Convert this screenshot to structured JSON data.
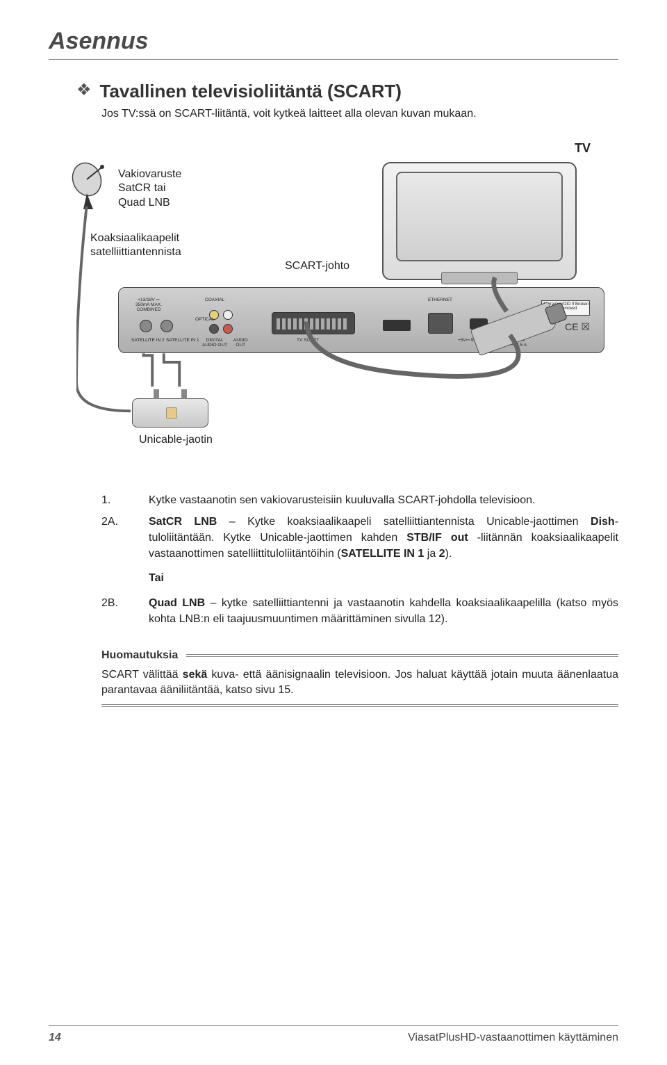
{
  "chapter_title": "Asennus",
  "section_title": "Tavallinen televisioliitäntä (SCART)",
  "intro": "Jos TV:ssä on SCART-liitäntä, voit kytkeä laitteet alla olevan kuvan mukaan.",
  "diagram": {
    "tv_label": "TV",
    "vakio_lines": [
      "Vakiovaruste",
      "SatCR tai",
      "Quad LNB"
    ],
    "coax_lines": [
      "Koaksiaalikaapelit",
      "satelliittiantennista"
    ],
    "scart_cable": "SCART-johto",
    "unicable": "Unicable-jaotin",
    "stb_ports": {
      "spec_line1": "+13/18V ⎓",
      "spec_line2": "350mA MAX.",
      "spec_line3": "COMBINED",
      "coaxial": "COAXIAL",
      "optical": "OPTICAL",
      "sat2": "SATELLITE IN 2",
      "sat1": "SATELLITE IN 1",
      "digital_audio": "DIGITAL\nAUDIO OUT",
      "audio_out": "AUDIO\nOUT",
      "tv_scart": "TV SCART",
      "ethernet": "ETHERNET",
      "usb": "+5V⎓ 500mA MAX.",
      "power": "POWER IN\n+12V ⎓ 2.5 A",
      "warranty": "Warranty VOID If Broken or Removed",
      "ce": "CE ☒"
    },
    "cable_color": "#666666",
    "device_fill": "#cfcfcf",
    "device_stroke": "#555555"
  },
  "steps": [
    {
      "num": "1.",
      "text": "Kytke vastaanotin sen vakiovarusteisiin kuuluvalla SCART-johdolla televisioon."
    },
    {
      "num": "2A.",
      "html": "<b>SatCR LNB</b> – Kytke koaksiaalikaapeli satelliittiantennista Unicable-jaottimen <b>Dish</b>-tuloliitäntään. Kytke Unicable-jaottimen kahden <b>STB/IF out</b> -liitännän koaksiaalikaapelit vastaanottimen satelliittituloliitäntöihin (<b>SATELLITE IN 1</b> ja <b>2</b>)."
    }
  ],
  "tai_label": "Tai",
  "step_2b": {
    "num": "2B.",
    "html": "<b>Quad LNB</b> – kytke satelliittiantenni ja vastaanotin kahdella koaksiaalikaapelilla (katso myös kohta LNB:n eli taajuusmuuntimen määrittäminen sivulla 12)."
  },
  "note": {
    "title": "Huomautuksia",
    "body_html": "SCART välittää <b>sekä</b> kuva- että äänisignaalin televisioon. Jos haluat käyttää jotain muuta äänenlaatua parantavaa ääniliitäntää, katso sivu 15."
  },
  "footer": {
    "page": "14",
    "right": "ViasatPlusHD-vastaanottimen käyttäminen"
  },
  "colors": {
    "text": "#222222",
    "heading": "#4a4a4a",
    "rule": "#888888"
  }
}
